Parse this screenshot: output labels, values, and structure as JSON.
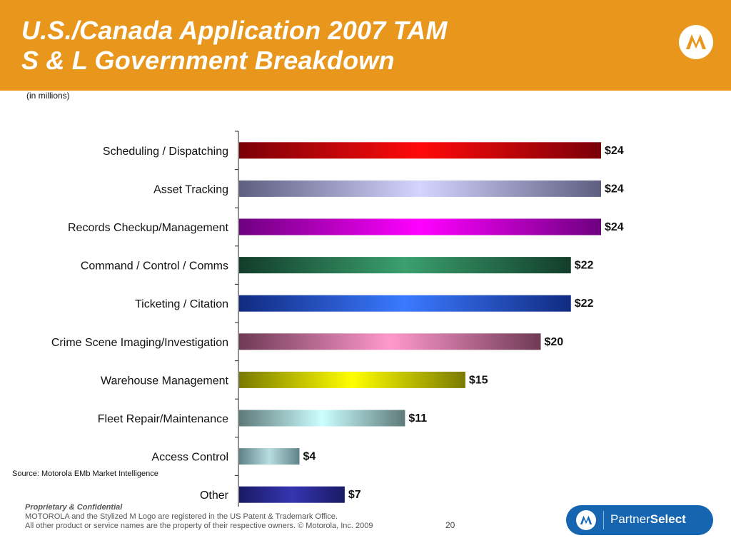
{
  "header": {
    "title_line1": "U.S./Canada Application 2007 TAM",
    "title_line2": "S & L Government Breakdown",
    "accent_color": "#e8971c"
  },
  "note": "(in millions)",
  "source": "Source: Motorola EMb Market Intelligence",
  "footer": {
    "confidential": "Proprietary & Confidential",
    "line1": "MOTOROLA and the Stylized M Logo are registered in the  US Patent & Trademark Office.",
    "line2": "All other product or service names are the property of their respective owners. © Motorola, Inc. 2009",
    "page_number": "20",
    "partner_prefix": "Partner",
    "partner_suffix": "Select"
  },
  "chart_data": {
    "type": "bar",
    "orientation": "horizontal",
    "categories": [
      "Scheduling / Dispatching",
      "Asset Tracking",
      "Records Checkup/Management",
      "Command / Control / Comms",
      "Ticketing / Citation",
      "Crime Scene Imaging/Investigation",
      "Warehouse Management",
      "Fleet Repair/Maintenance",
      "Access Control",
      "Other"
    ],
    "values": [
      24,
      24,
      24,
      22,
      22,
      20,
      15,
      11,
      4,
      7
    ],
    "data_labels": [
      "$24",
      "$24",
      "$24",
      "$22",
      "$22",
      "$20",
      "$15",
      "$11",
      "$4",
      "$7"
    ],
    "bar_colors": [
      [
        "#7a0008",
        "#ff0a0a"
      ],
      [
        "#5e5e80",
        "#d4d4ff"
      ],
      [
        "#6e0080",
        "#ff00ff"
      ],
      [
        "#123d2a",
        "#3aa06e"
      ],
      [
        "#102b80",
        "#3a7aff"
      ],
      [
        "#6e3a55",
        "#ff99cc"
      ],
      [
        "#7a7a00",
        "#ffff00"
      ],
      [
        "#5e7a7a",
        "#ccffff"
      ],
      [
        "#5e8288",
        "#b8dde0"
      ],
      [
        "#1a1a66",
        "#3535b0"
      ]
    ],
    "xlim": [
      0,
      27
    ]
  }
}
